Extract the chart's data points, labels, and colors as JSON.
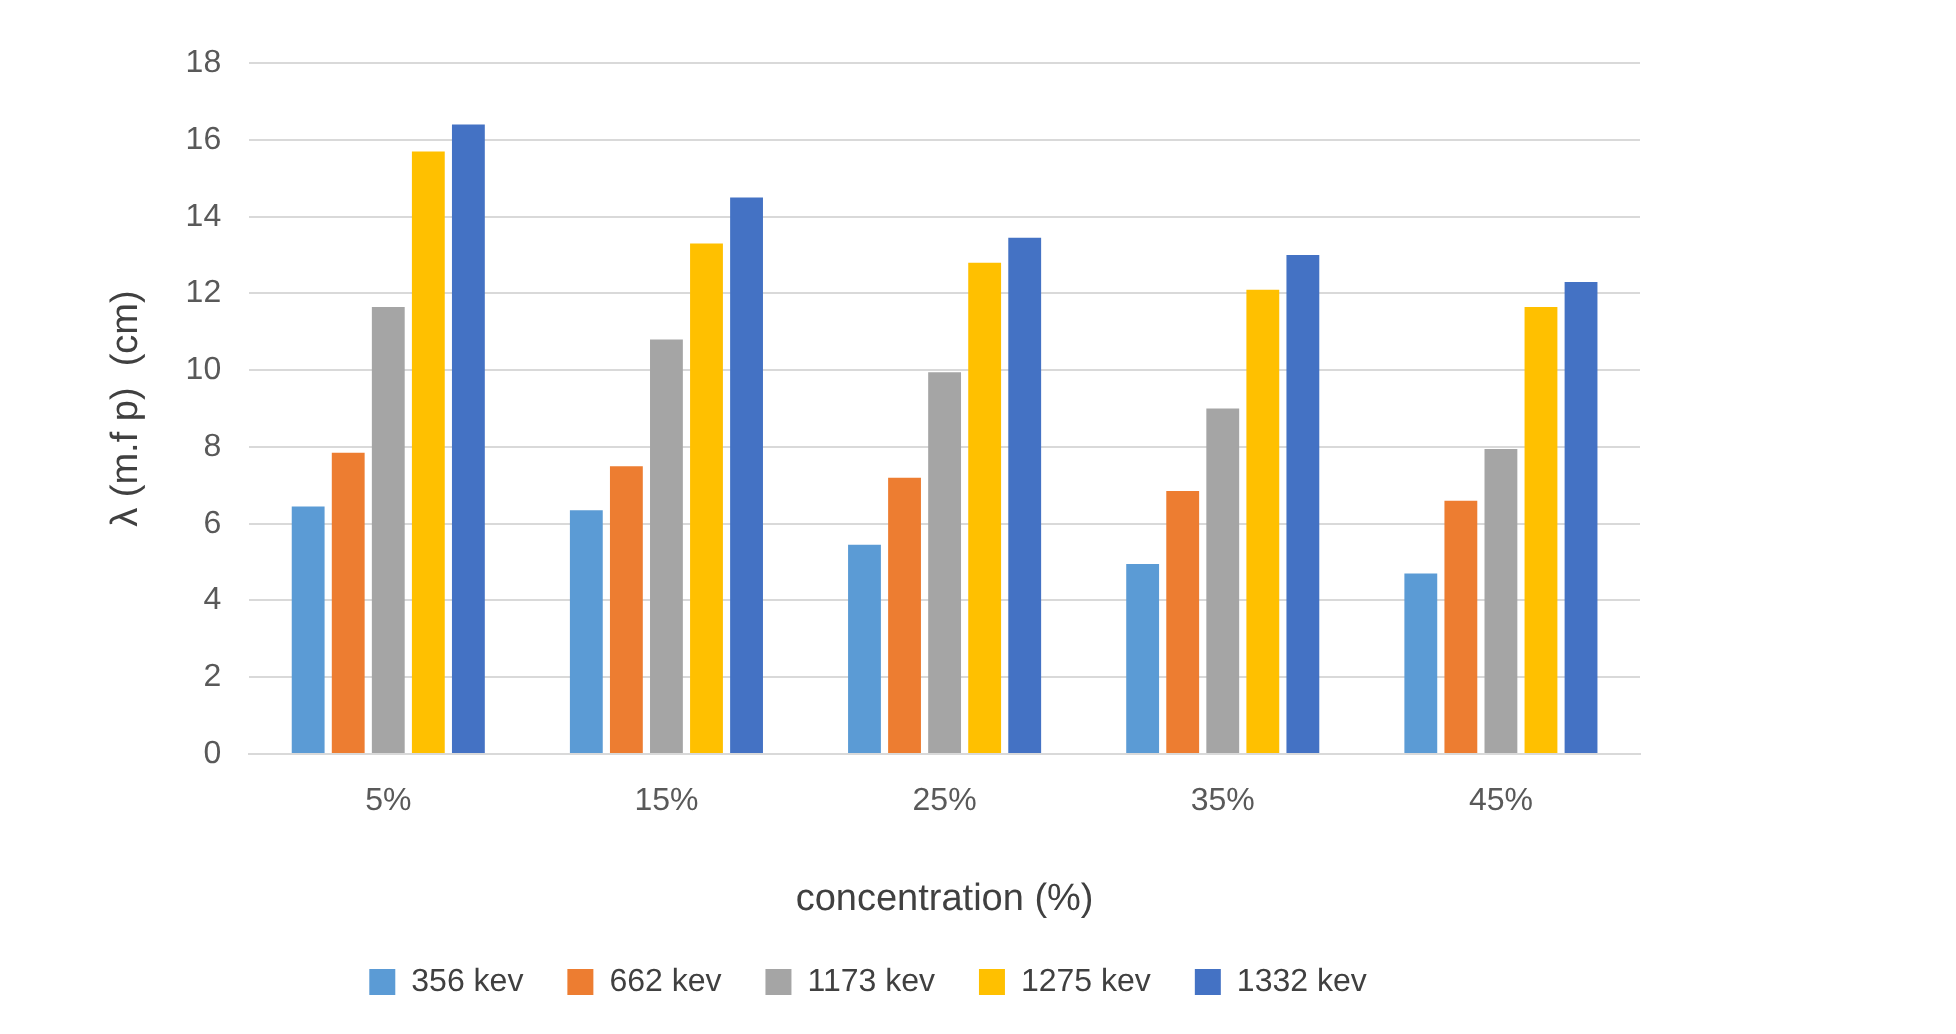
{
  "chart_data": {
    "type": "bar",
    "xlabel": "concentration (%)",
    "ylabel": "λ (m.f p)  (cm)",
    "categories": [
      "5%",
      "15%",
      "25%",
      "35%",
      "45%"
    ],
    "series": [
      {
        "name": "356 kev",
        "color": "#5b9bd5",
        "values": [
          6.45,
          6.35,
          5.45,
          4.95,
          4.7
        ]
      },
      {
        "name": "662 kev",
        "color": "#ed7d31",
        "values": [
          7.85,
          7.5,
          7.2,
          6.85,
          6.6
        ]
      },
      {
        "name": "1173 kev",
        "color": "#a5a5a5",
        "values": [
          11.65,
          10.8,
          9.95,
          9.0,
          7.95
        ]
      },
      {
        "name": "1275 kev",
        "color": "#ffc000",
        "values": [
          15.7,
          13.3,
          12.8,
          12.1,
          11.65
        ]
      },
      {
        "name": "1332 kev",
        "color": "#4472c4",
        "values": [
          16.4,
          14.5,
          13.45,
          13.0,
          12.3
        ]
      }
    ],
    "ylim": [
      0,
      18
    ],
    "yticks": [
      0,
      2,
      4,
      6,
      8,
      10,
      12,
      14,
      16,
      18
    ],
    "grid": "y",
    "legend": "bottom"
  }
}
